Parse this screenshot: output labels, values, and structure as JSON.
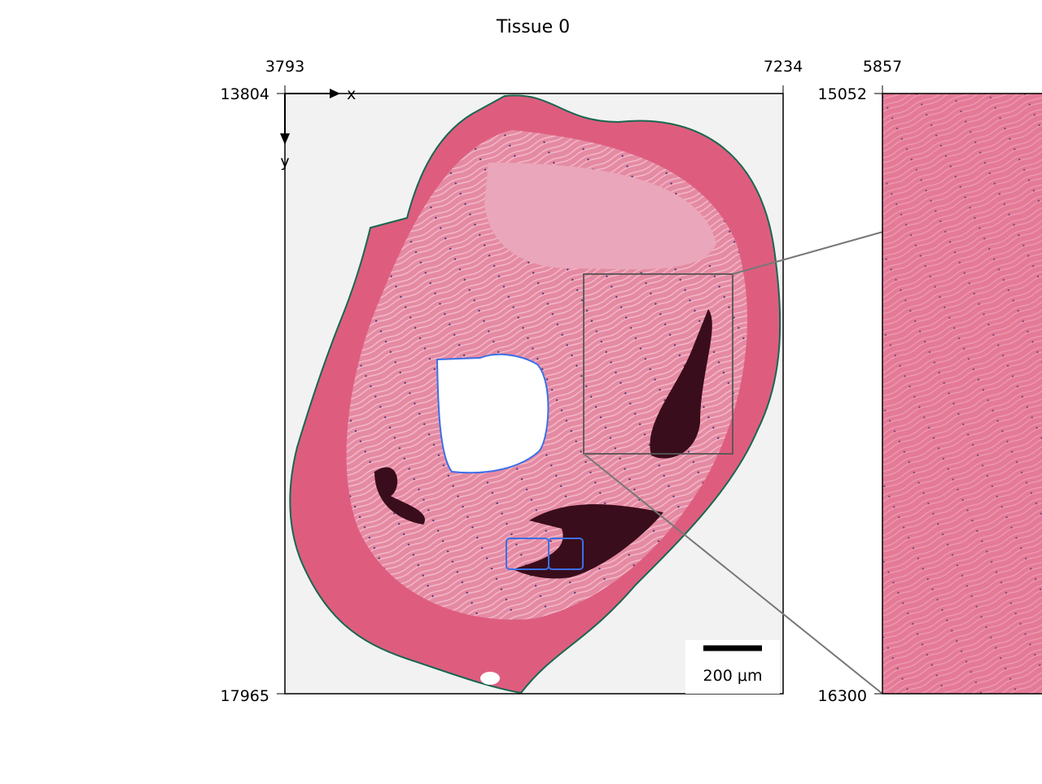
{
  "title": "Tissue 0",
  "left_panel": {
    "top_ticks": [
      "3793",
      "7234"
    ],
    "left_ticks": [
      "13804",
      "17965"
    ],
    "x_axis_label": "x",
    "y_axis_label": "y",
    "scale_bar": "200 μm"
  },
  "right_panel": {
    "top_ticks": [
      "5857"
    ],
    "left_ticks": [
      "15052",
      "16300"
    ]
  }
}
